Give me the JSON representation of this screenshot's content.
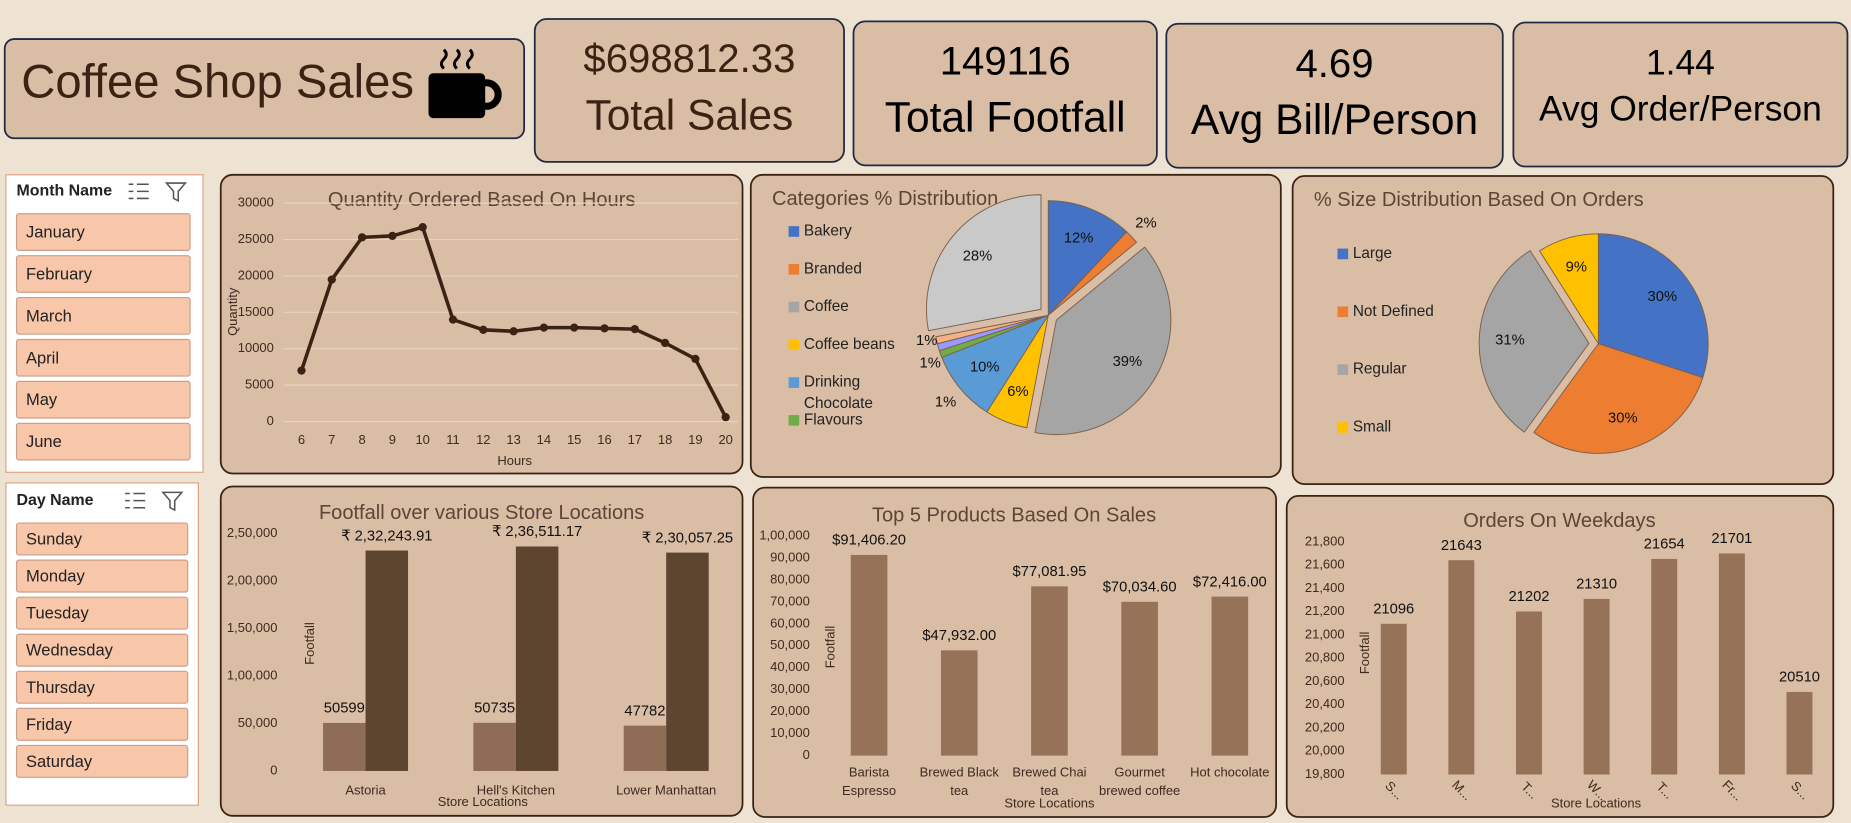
{
  "header": {
    "title": "Coffee Shop Sales"
  },
  "kpis": [
    {
      "value": "$698812.33",
      "label": "Total Sales"
    },
    {
      "value": "149116",
      "label": "Total Footfall"
    },
    {
      "value": "4.69",
      "label": "Avg Bill/Person"
    },
    {
      "value": "1.44",
      "label": "Avg Order/Person"
    }
  ],
  "slicers": [
    {
      "title": "Month Name",
      "items": [
        "January",
        "February",
        "March",
        "April",
        "May",
        "June"
      ]
    },
    {
      "title": "Day Name",
      "items": [
        "Sunday",
        "Monday",
        "Tuesday",
        "Wednesday",
        "Thursday",
        "Friday",
        "Saturday"
      ]
    }
  ],
  "chart_data": [
    {
      "type": "line",
      "title": "Quantity Ordered Based On Hours",
      "x_label": "Hours",
      "y_label": "Quantity",
      "x": [
        6,
        7,
        8,
        9,
        10,
        11,
        12,
        13,
        14,
        15,
        16,
        17,
        18,
        19,
        20
      ],
      "values": [
        7000,
        19500,
        25300,
        25500,
        26700,
        14000,
        12600,
        12400,
        12900,
        12900,
        12800,
        12700,
        10800,
        8600,
        600
      ],
      "color": "#3b2314",
      "xlim": [
        5.4,
        20.4
      ],
      "xticks": [
        6,
        7,
        8,
        9,
        10,
        11,
        12,
        13,
        14,
        15,
        16,
        17,
        18,
        19,
        20
      ],
      "ylim": [
        0,
        30000
      ],
      "yticks": [
        0,
        5000,
        10000,
        15000,
        20000,
        25000,
        30000
      ],
      "grid": true
    },
    {
      "type": "pie",
      "title": "Categories % Distribution",
      "categories": [
        "Bakery",
        "Branded",
        "Coffee",
        "Coffee beans",
        "Drinking Chocolate",
        "Flavours",
        null,
        null,
        null
      ],
      "values": [
        12,
        2,
        39,
        6,
        10,
        1,
        1,
        1,
        28
      ],
      "value_labels": [
        "12%",
        "2%",
        "39%",
        "6%",
        "10%",
        "1%",
        "1%",
        "1%",
        "28%"
      ],
      "colors": [
        "#4472c4",
        "#ed7d31",
        "#a5a5a5",
        "#ffc000",
        "#5b9bd5",
        "#70ad47",
        "#9999ff",
        "#f4b183",
        "#c9c9c9"
      ]
    },
    {
      "type": "pie",
      "title": "% Size Distribution Based On Orders",
      "categories": [
        "Large",
        "Not Defined",
        "Regular",
        "Small"
      ],
      "values": [
        30,
        30,
        31,
        9
      ],
      "value_labels": [
        "30%",
        "30%",
        "31%",
        "9%"
      ],
      "colors": [
        "#4472c4",
        "#ed7d31",
        "#a5a5a5",
        "#ffc000"
      ]
    },
    {
      "type": "bar",
      "title": "Footfall over various Store Locations",
      "x_label": "Store Locations",
      "y_label": "Footfall",
      "categories": [
        "Astoria",
        "Hell's Kitchen",
        "Lower Manhattan"
      ],
      "series": [
        {
          "color": "#8f6c55",
          "values": [
            50599,
            50735,
            47782
          ]
        },
        {
          "color": "#5e4530",
          "values": [
            232243.91,
            236511.17,
            230057.25
          ],
          "value_labels": [
            "₹ 2,32,243.91",
            "₹ 2,36,511.17",
            "₹ 2,30,057.25"
          ]
        }
      ],
      "ylim": [
        0,
        250000
      ],
      "yticks": [
        0,
        {
          "value": 50000,
          "label": "50,000"
        },
        {
          "value": 100000,
          "label": "1,00,000"
        },
        {
          "value": 150000,
          "label": "1,50,000"
        },
        {
          "value": 200000,
          "label": "2,00,000"
        },
        {
          "value": 250000,
          "label": "2,50,000"
        }
      ],
      "grid": false
    },
    {
      "type": "bar",
      "title": "Top 5 Products Based On Sales",
      "x_label": "Store Locations",
      "y_label": "Footfall",
      "categories": [
        "Barista Espresso",
        "Brewed Black tea",
        "Brewed Chai tea",
        "Gourmet brewed coffee",
        "Hot chocolate"
      ],
      "values": [
        91406.2,
        47932,
        77081.95,
        70034.6,
        72416
      ],
      "value_labels": [
        "$91,406.20",
        "$47,932.00",
        "$77,081.95",
        "$70,034.60",
        "$72,416.00"
      ],
      "color": "#967259",
      "ylim": [
        0,
        100000
      ],
      "yticks": [
        0,
        {
          "value": 10000,
          "label": "10,000"
        },
        {
          "value": 20000,
          "label": "20,000"
        },
        {
          "value": 30000,
          "label": "30,000"
        },
        {
          "value": 40000,
          "label": "40,000"
        },
        {
          "value": 50000,
          "label": "50,000"
        },
        {
          "value": 60000,
          "label": "60,000"
        },
        {
          "value": 70000,
          "label": "70,000"
        },
        {
          "value": 80000,
          "label": "80,000"
        },
        {
          "value": 90000,
          "label": "90,000"
        },
        {
          "value": 100000,
          "label": "1,00,000"
        }
      ],
      "grid": false
    },
    {
      "type": "bar",
      "title": "Orders On Weekdays",
      "x_label": "Store Locations",
      "y_label": "Footfall",
      "categories": [
        "S...",
        "M...",
        "T...",
        "W...",
        "T...",
        "Fr...",
        "S..."
      ],
      "values": [
        21096,
        21643,
        21202,
        21310,
        21654,
        21701,
        20510
      ],
      "color": "#967259",
      "ylim": [
        19800,
        21800
      ],
      "yticks": [
        {
          "value": 19800,
          "label": "19,800"
        },
        {
          "value": 20000,
          "label": "20,000"
        },
        {
          "value": 20200,
          "label": "20,200"
        },
        {
          "value": 20400,
          "label": "20,400"
        },
        {
          "value": 20600,
          "label": "20,600"
        },
        {
          "value": 20800,
          "label": "20,800"
        },
        {
          "value": 21000,
          "label": "21,000"
        },
        {
          "value": 21200,
          "label": "21,200"
        },
        {
          "value": 21400,
          "label": "21,400"
        },
        {
          "value": 21600,
          "label": "21,600"
        },
        {
          "value": 21800,
          "label": "21,800"
        }
      ],
      "grid": false
    }
  ]
}
